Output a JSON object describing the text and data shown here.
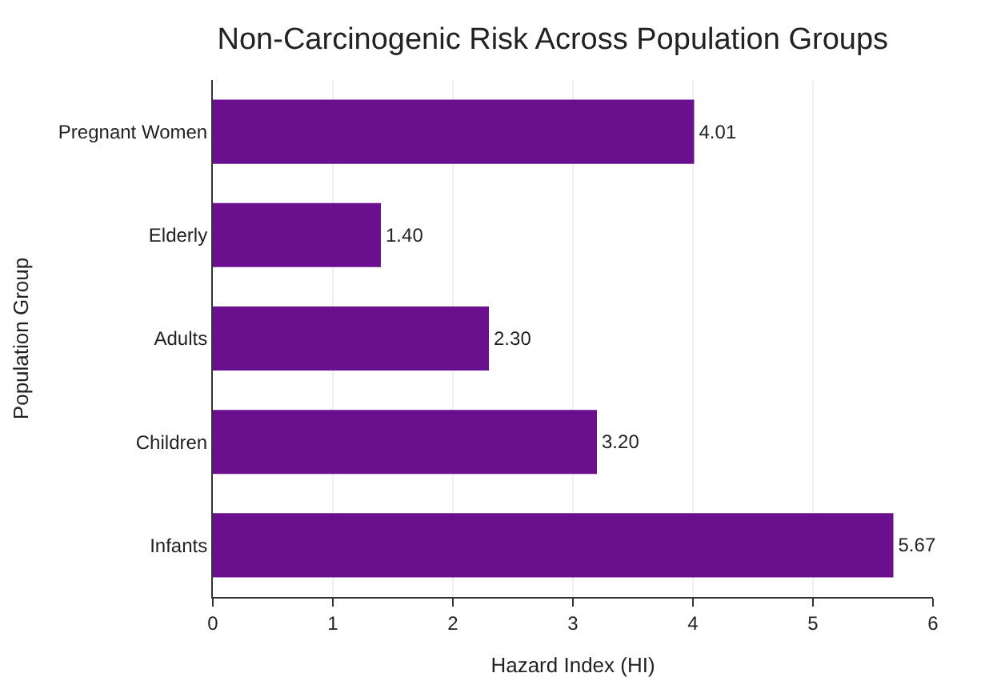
{
  "chart_data": {
    "type": "bar",
    "orientation": "horizontal",
    "title": "Non-Carcinogenic Risk Across Population Groups",
    "xlabel": "Hazard Index (HI)",
    "ylabel": "Population Group",
    "categories": [
      "Pregnant Women",
      "Elderly",
      "Adults",
      "Children",
      "Infants"
    ],
    "values": [
      4.01,
      1.4,
      2.3,
      3.2,
      5.67
    ],
    "value_labels": [
      "4.01",
      "1.40",
      "2.30",
      "3.20",
      "5.67"
    ],
    "color": "#6a0f8e",
    "xlim": [
      0,
      6
    ],
    "xticks": [
      0,
      1,
      2,
      3,
      4,
      5,
      6
    ],
    "grid": "x"
  }
}
